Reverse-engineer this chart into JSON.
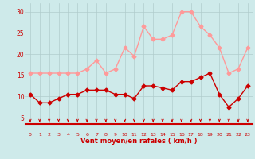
{
  "x": [
    0,
    1,
    2,
    3,
    4,
    5,
    6,
    7,
    8,
    9,
    10,
    11,
    12,
    13,
    14,
    15,
    16,
    17,
    18,
    19,
    20,
    21,
    22,
    23
  ],
  "wind_mean": [
    10.5,
    8.5,
    8.5,
    9.5,
    10.5,
    10.5,
    11.5,
    11.5,
    11.5,
    10.5,
    10.5,
    9.5,
    12.5,
    12.5,
    12.0,
    11.5,
    13.5,
    13.5,
    14.5,
    15.5,
    10.5,
    7.5,
    9.5,
    12.5
  ],
  "wind_gust": [
    15.5,
    15.5,
    15.5,
    15.5,
    15.5,
    15.5,
    16.5,
    18.5,
    15.5,
    16.5,
    21.5,
    19.5,
    26.5,
    23.5,
    23.5,
    24.5,
    30.0,
    30.0,
    26.5,
    24.5,
    21.5,
    15.5,
    16.5,
    21.5
  ],
  "mean_color": "#cc0000",
  "gust_color": "#ff9999",
  "bg_color": "#ceeaea",
  "grid_color": "#b0cccc",
  "xlabel": "Vent moyen/en rafales ( km/h )",
  "yticks": [
    5,
    10,
    15,
    20,
    25,
    30
  ],
  "ylim": [
    3.5,
    32
  ],
  "xlim": [
    -0.5,
    23.5
  ]
}
